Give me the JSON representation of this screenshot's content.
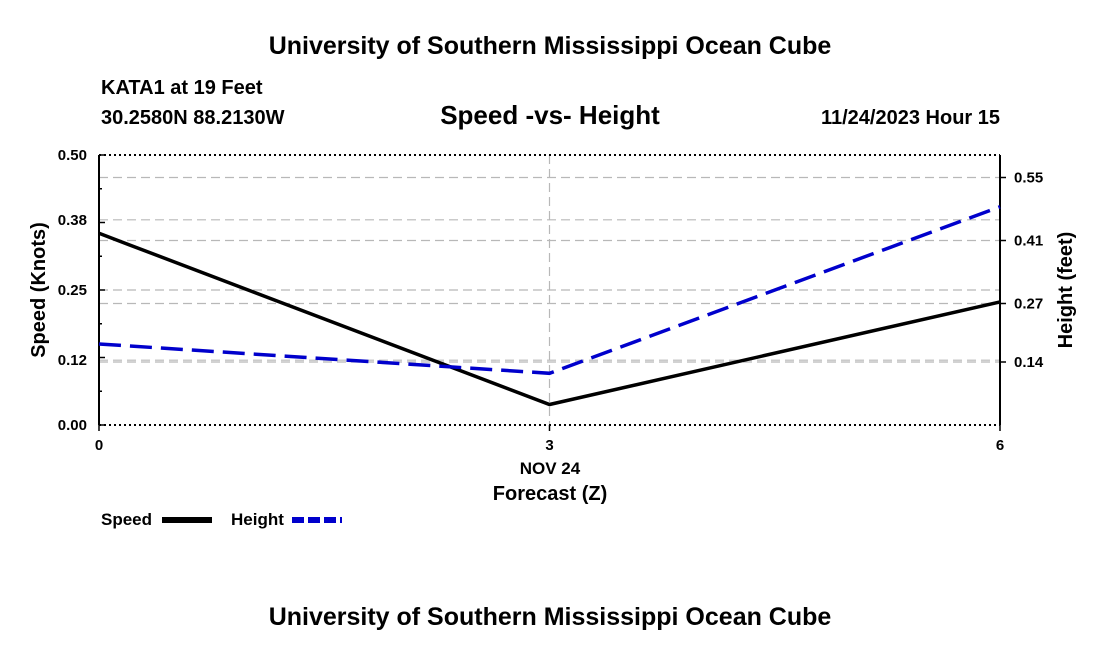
{
  "page": {
    "title_top": "University of Southern Mississippi Ocean Cube",
    "title_bottom": "University of Southern Mississippi Ocean Cube",
    "station": "KATA1 at 19 Feet",
    "location": "30.2580N  88.2130W",
    "datetime": "11/24/2023 Hour 15"
  },
  "chart_data": {
    "type": "line",
    "title": "Speed -vs- Height",
    "xlabel": "Forecast (Z)",
    "xsublabel": "NOV 24",
    "ylabel": "Speed (Knots)",
    "y2label": "Height (feet)",
    "x": [
      0,
      3,
      6
    ],
    "xlim": [
      0,
      6
    ],
    "xticks": [
      "0",
      "3",
      "6"
    ],
    "ylim": [
      0,
      0.5
    ],
    "yticks": [
      0,
      0.12,
      0.25,
      0.38,
      0.5
    ],
    "ytick_labels": [
      "0.00",
      "0.12",
      "0.25",
      "0.38",
      "0.50"
    ],
    "y2lim": [
      0,
      0.6
    ],
    "y2ticks": [
      0.14,
      0.27,
      0.41,
      0.55
    ],
    "y2tick_labels": [
      "0.14",
      "0.27",
      "0.41",
      "0.55"
    ],
    "series": [
      {
        "name": "Speed",
        "axis": "left",
        "color": "#000000",
        "dash": "solid",
        "values": [
          0.355,
          0.038,
          0.228
        ]
      },
      {
        "name": "Height",
        "axis": "right",
        "color": "#0000cc",
        "dash": "dashed",
        "values": [
          0.18,
          0.115,
          0.485
        ]
      }
    ],
    "legend": {
      "position": "bottom-left",
      "items": [
        "Speed",
        "Height"
      ]
    },
    "grid": true
  }
}
